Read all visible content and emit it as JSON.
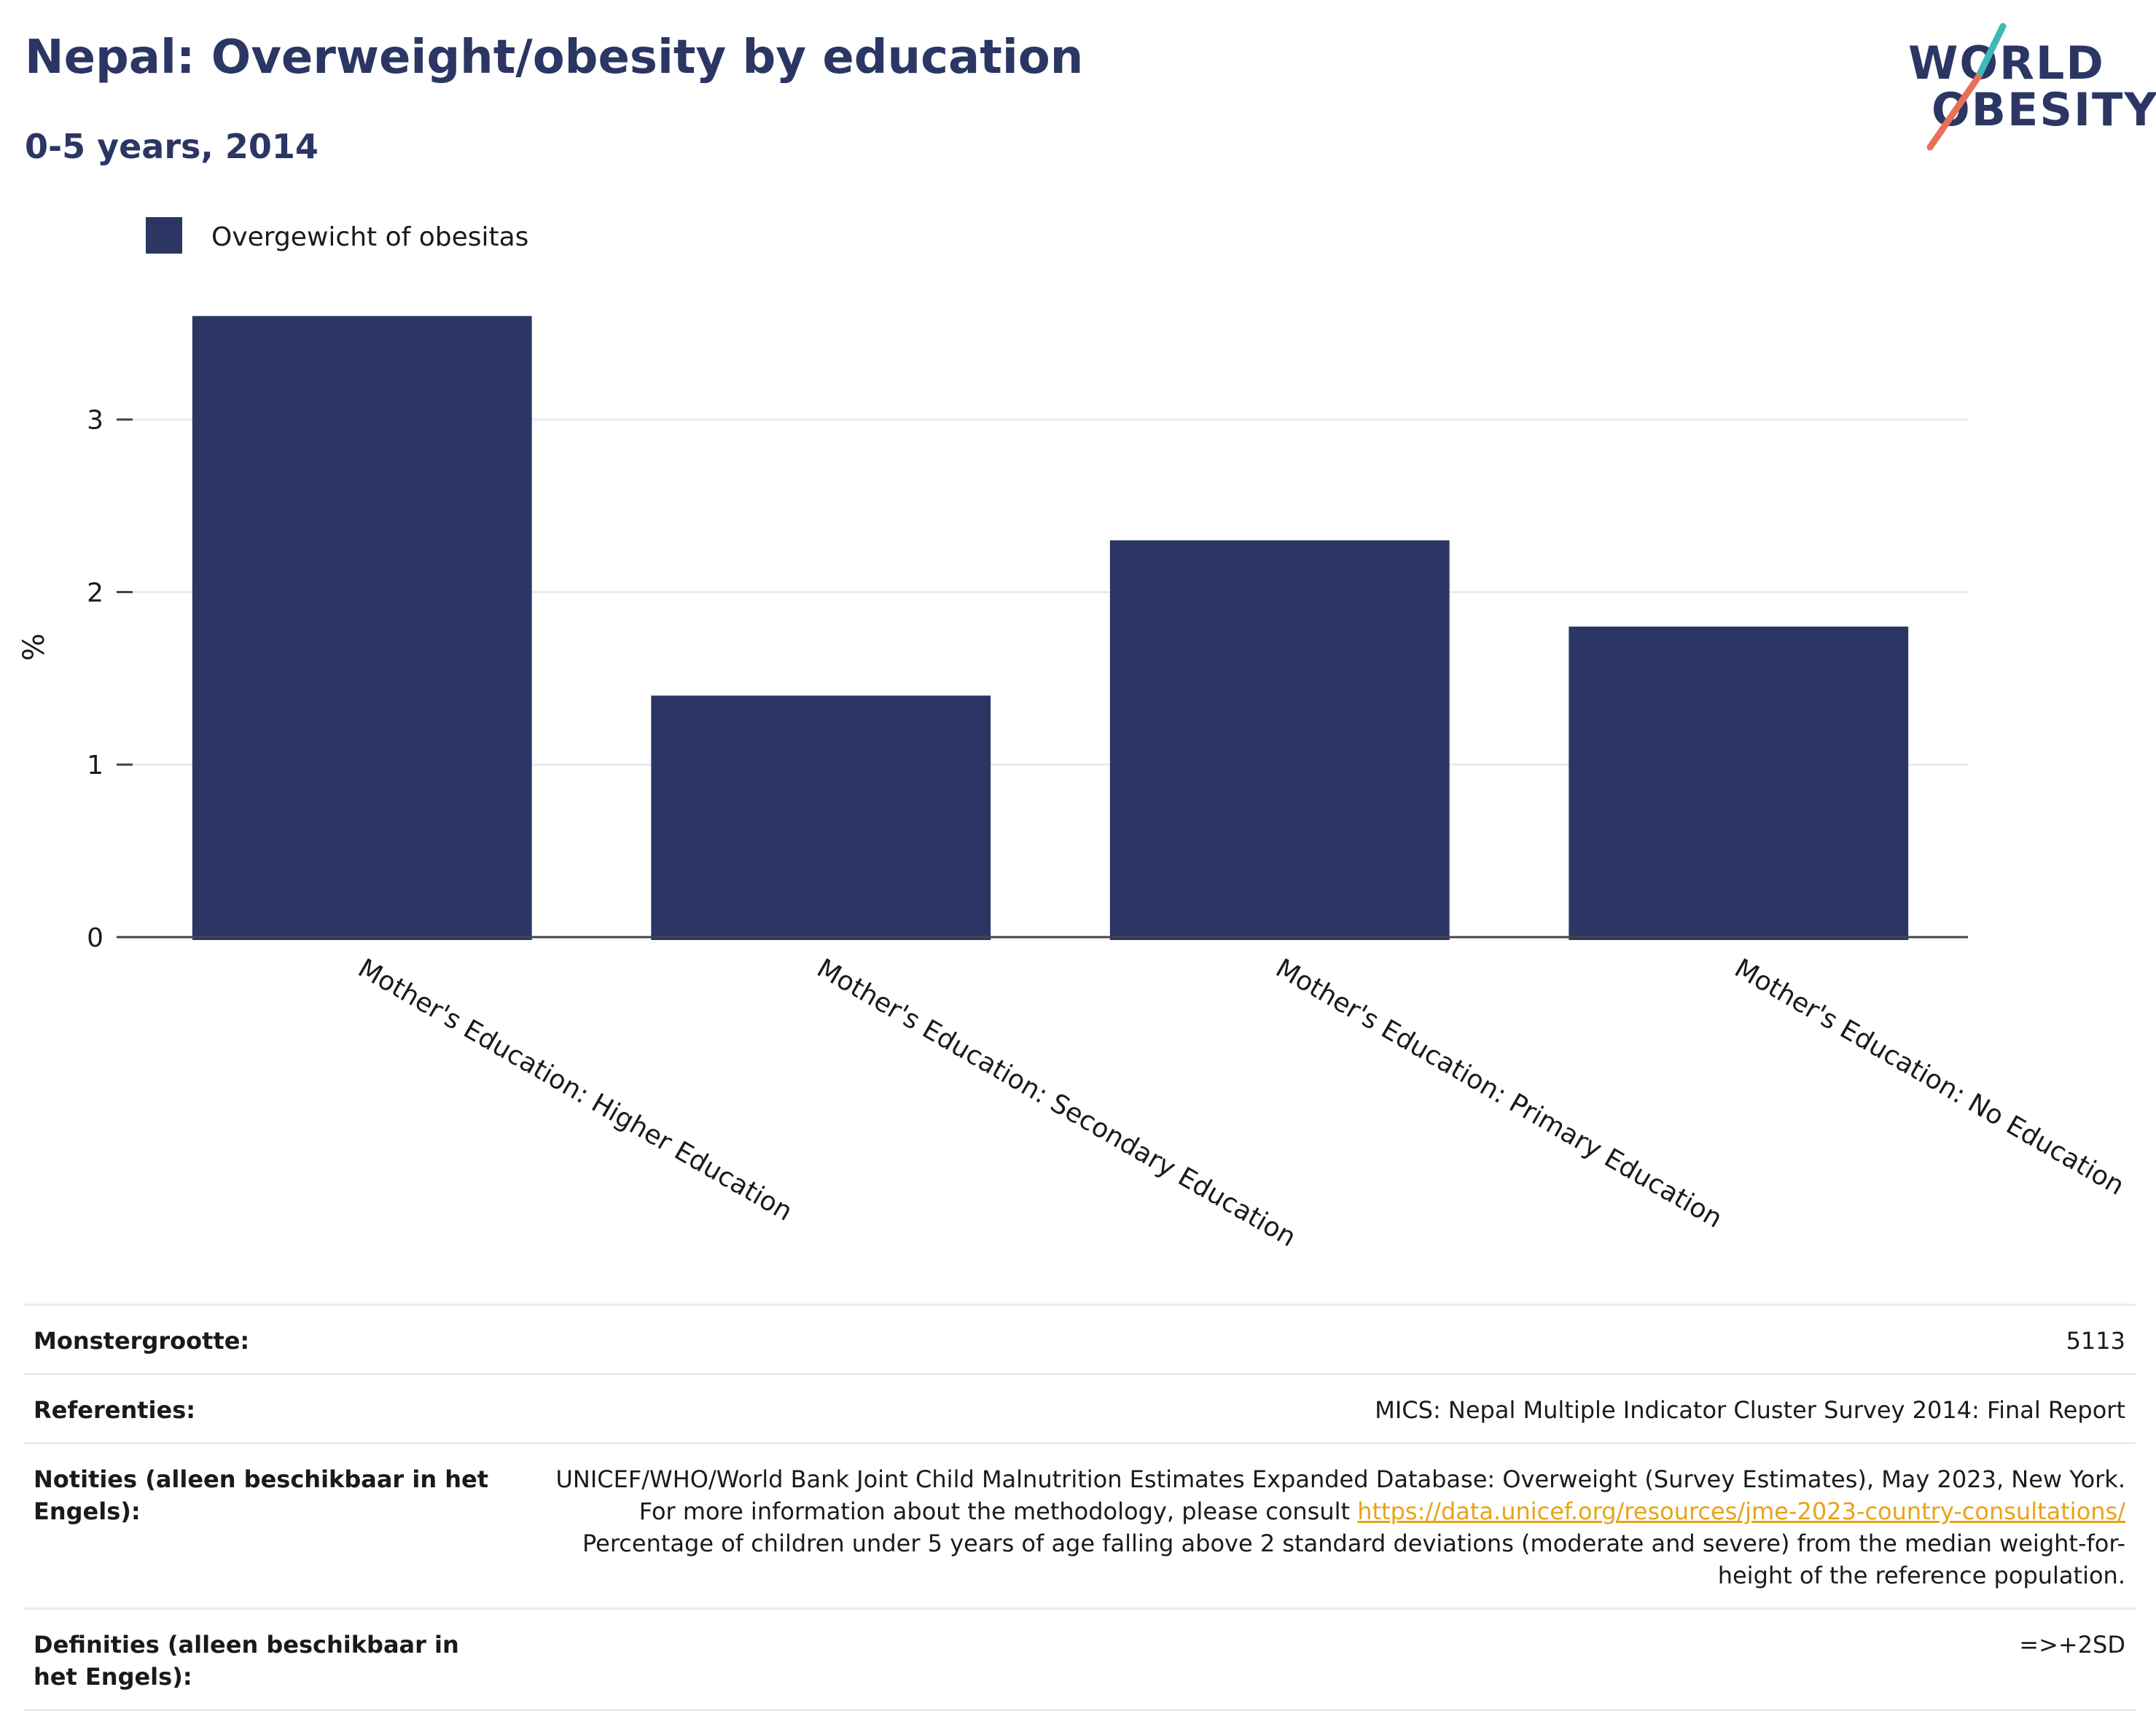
{
  "header": {
    "title": "Nepal: Overweight/obesity by education",
    "subtitle": "0-5 years, 2014"
  },
  "logo": {
    "line1": "WORLD",
    "line2": "OBESITY",
    "colors": {
      "text": "#2b3664",
      "slash_top": "#3bb8b8",
      "slash_bottom": "#e8705a"
    }
  },
  "chart_data": {
    "type": "bar",
    "categories": [
      "Mother's Education: Higher Education",
      "Mother's Education: Secondary Education",
      "Mother's Education: Primary Education",
      "Mother's Education: No Education"
    ],
    "series": [
      {
        "name": "Overgewicht of obesitas",
        "values": [
          3.6,
          1.4,
          2.3,
          1.8
        ],
        "color": "#2b3664"
      }
    ],
    "ylabel": "%",
    "xlabel": "",
    "ylim": [
      0,
      3.7
    ],
    "yticks": [
      0,
      1,
      2,
      3
    ],
    "grid": true,
    "legend_position": "top-left"
  },
  "info": [
    {
      "label": "Monstergrootte:",
      "value": "5113"
    },
    {
      "label": "Referenties:",
      "value": "MICS: Nepal Multiple Indicator Cluster Survey 2014: Final Report"
    },
    {
      "label": "Notities (alleen beschikbaar in het Engels):",
      "value_before": "UNICEF/WHO/World Bank Joint Child Malnutrition Estimates Expanded Database: Overweight (Survey Estimates), May 2023, New York. For more information about the methodology, please consult",
      "link": "https://data.unicef.org/resources/jme-2023-country-consultations/",
      "value_after": "Percentage of children under 5 years of age falling above 2 standard deviations (moderate and severe) from the median weight-for-height of the reference population."
    },
    {
      "label": "Definities (alleen beschikbaar in het Engels):",
      "value": "=>+2SD"
    }
  ]
}
